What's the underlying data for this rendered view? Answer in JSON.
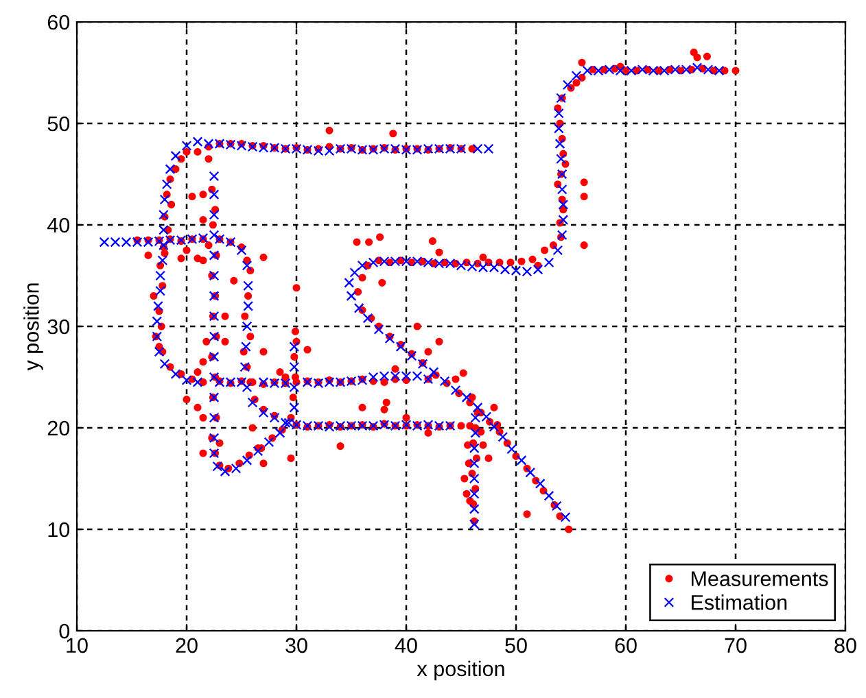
{
  "chart_data": {
    "type": "scatter",
    "xlabel": "x position",
    "ylabel": "y position",
    "xlim": [
      10,
      80
    ],
    "ylim": [
      0,
      60
    ],
    "xticks": [
      10,
      20,
      30,
      40,
      50,
      60,
      70,
      80
    ],
    "yticks": [
      0,
      10,
      20,
      30,
      40,
      50,
      60
    ],
    "grid": true,
    "legend": "bottom right",
    "series": [
      {
        "name": "Measurements",
        "color": "#ff0000",
        "marker": "circle",
        "x": [
          15.5,
          16.5,
          17.5,
          18.5,
          19.5,
          20.5,
          21.5,
          23,
          24,
          25,
          25.5,
          25.8,
          25.6,
          25.3,
          25.8,
          25.2,
          25.5,
          25.8,
          26.2,
          27,
          28,
          16.5,
          18,
          20,
          19.5,
          21.5,
          27,
          24.3,
          23.5,
          23.5,
          27,
          28.5,
          29,
          21.5,
          21,
          20,
          21,
          21.5,
          26,
          26.5,
          27,
          29.5,
          23,
          21.5,
          30,
          31,
          32,
          33,
          34,
          35,
          36,
          37,
          38,
          39,
          40,
          41,
          42,
          43,
          44,
          45,
          45.8,
          34,
          38,
          38.2,
          40,
          42,
          36,
          22.3,
          22.6,
          22.4,
          22.7,
          22.3,
          22.6,
          22.4,
          22.7,
          22.3,
          22.6,
          22.4,
          22.7,
          22.3,
          22.6,
          23,
          23.8,
          24.8,
          25.7,
          26.8,
          27.8,
          28.7,
          29.5,
          29.7,
          29.9,
          29.8,
          30,
          29.9,
          21.5,
          21,
          20.5,
          21.5,
          22,
          21.8,
          46,
          45,
          44,
          43,
          42,
          41,
          40,
          39,
          38,
          37,
          36,
          35,
          34,
          33,
          32,
          31,
          30,
          29,
          28,
          27,
          26,
          25,
          24,
          23,
          22,
          21,
          20,
          19.5,
          19,
          18.5,
          18.2,
          18.6,
          18,
          18.3,
          17.9,
          17.6,
          17.8,
          17,
          17.5,
          17.7,
          17.2,
          17.5,
          17.8,
          18.5,
          19.5,
          20.5,
          21.5,
          23,
          24,
          25,
          26,
          27,
          28,
          29,
          30,
          31,
          32,
          33,
          34,
          35,
          36,
          37,
          38,
          39,
          40,
          22,
          33,
          38.8,
          46.2,
          46.1,
          46.3,
          46,
          46.4,
          46.1,
          46.3,
          46.5,
          45.7,
          45.3,
          47.5,
          45.8,
          54.8,
          54,
          53.5,
          52.5,
          51.8,
          51,
          50,
          49.2,
          48.5,
          47.6,
          46.8,
          45.8,
          44.8,
          43.7,
          42.7,
          41.5,
          40.5,
          39.5,
          38.5,
          37.5,
          36.8,
          36,
          35.6,
          36,
          36.5,
          37.5,
          38.5,
          39.5,
          40.5,
          41.5,
          42.5,
          43.5,
          44.5,
          45.5,
          46.5,
          47.5,
          48.5,
          49.5,
          50.5,
          51.5,
          52,
          52.6,
          53.4,
          54.1,
          54,
          54.3,
          54.2,
          53.8,
          54.1,
          54.5,
          54.3,
          54.2,
          54,
          53.8,
          54.2,
          55,
          55.5,
          56,
          57,
          58,
          59,
          60,
          61,
          62,
          63,
          64,
          65,
          66,
          67,
          68,
          69,
          70,
          56,
          59.5,
          66.2,
          66.5,
          67.4,
          56.2,
          56.2,
          56.2,
          43,
          35.5,
          36.6,
          37.6,
          42.4,
          37.8,
          47,
          41,
          42,
          39,
          43,
          42,
          44.5,
          45.2,
          46,
          48,
          48.3,
          47,
          46.8,
          45.5,
          51,
          45.6,
          30,
          31
        ],
        "values": [
          38.5,
          38.5,
          38.5,
          38.6,
          38.4,
          38.6,
          38.6,
          38.6,
          38.3,
          37.8,
          36.5,
          35.5,
          33,
          31,
          29,
          27.5,
          26,
          24.5,
          22.8,
          21.8,
          21.2,
          37,
          37.2,
          37.5,
          36.7,
          36.5,
          36.8,
          34.5,
          31,
          28.5,
          27.5,
          25.5,
          25,
          26.5,
          25.5,
          22.8,
          22,
          21,
          20,
          18,
          16.5,
          17,
          18.5,
          17.5,
          20.3,
          20.1,
          20.2,
          20.3,
          20.1,
          20.2,
          20.3,
          20.1,
          20.4,
          20.2,
          20.2,
          20.3,
          20.2,
          20.1,
          20.2,
          20.2,
          20.2,
          18.2,
          21.8,
          22.5,
          21,
          19.5,
          22,
          43.5,
          41.5,
          40,
          37,
          35,
          33,
          31,
          29,
          27,
          25,
          23,
          21,
          19,
          17.5,
          16.3,
          16,
          16.5,
          17.3,
          18,
          19,
          19.8,
          21,
          23,
          25,
          27,
          28.5,
          29.5,
          40.5,
          36.7,
          42.8,
          43,
          38,
          28.5,
          47.5,
          47.5,
          47.6,
          47.5,
          47.4,
          47.5,
          47.5,
          47.4,
          47.6,
          47.5,
          47.4,
          47.6,
          47.5,
          47.7,
          47.5,
          47.4,
          47.6,
          47.5,
          47.6,
          47.8,
          47.8,
          48,
          48,
          48,
          47.7,
          47.2,
          47.2,
          46.5,
          45.5,
          44.5,
          43,
          42,
          40.8,
          39.5,
          37.8,
          36,
          34,
          33,
          31.5,
          30,
          29,
          28,
          27.5,
          26,
          25.3,
          24.8,
          24.5,
          24.6,
          24.4,
          24.6,
          24.5,
          24.3,
          24.5,
          24.4,
          24.5,
          24.6,
          24.5,
          24.7,
          24.5,
          24.6,
          24.8,
          24.6,
          24.5,
          24.8,
          24.7,
          46.5,
          49.3,
          49,
          10.8,
          12.5,
          14,
          15.5,
          17,
          18.5,
          20,
          21.5,
          16.5,
          15,
          17,
          12.8,
          10,
          11.3,
          12.4,
          13.8,
          14.8,
          16,
          17.2,
          18.5,
          19.6,
          20.6,
          21.5,
          22.5,
          23.4,
          24.4,
          25.2,
          26.4,
          27.3,
          28.2,
          29,
          30,
          30.8,
          31.6,
          33.4,
          34.8,
          36,
          36.5,
          36.3,
          36.5,
          36.3,
          36.4,
          36.2,
          36.3,
          36.2,
          36.3,
          36.2,
          36.3,
          36.3,
          36.3,
          36.4,
          36.6,
          36,
          37.5,
          38,
          38.8,
          40.2,
          41.5,
          42.5,
          44,
          45,
          46,
          47,
          48.5,
          50,
          51.5,
          52.5,
          53.5,
          54,
          54.5,
          55.3,
          55.3,
          55.4,
          55.2,
          55.2,
          55.3,
          55.2,
          55.3,
          55.2,
          55.3,
          55.4,
          55.2,
          55.2,
          55.2,
          56,
          55.6,
          57,
          56.5,
          56.6,
          44.2,
          42.8,
          38,
          37.3,
          38.3,
          38.3,
          38.8,
          38.4,
          34.3,
          36.8,
          30,
          27.5,
          25.8,
          28.5,
          24.8,
          24.8,
          25.4,
          23,
          22,
          20.3,
          18.3,
          19.6,
          13.5,
          11.5,
          18.3,
          33.8,
          27.7
        ]
      },
      {
        "name": "Estimation",
        "color": "#0000ff",
        "marker": "cross",
        "x": [
          12.5,
          13.5,
          14.5,
          15.5,
          16.5,
          17.5,
          18.5,
          19.5,
          20.5,
          21.5,
          23,
          24,
          25,
          25.5,
          25.6,
          25.6,
          25.5,
          25.4,
          25.3,
          25.5,
          26,
          27,
          28,
          29,
          30,
          31,
          32,
          33,
          34,
          35,
          36,
          37,
          38,
          39,
          40,
          41,
          42,
          43,
          44,
          22.5,
          22.5,
          22.5,
          22.5,
          22.5,
          22.5,
          22.5,
          22.5,
          22.5,
          22.5,
          22.5,
          22.5,
          22.5,
          22.5,
          22.5,
          22.8,
          23.5,
          24.5,
          25.5,
          26.5,
          27.5,
          28.5,
          29.3,
          29.8,
          29.8,
          29.8,
          29.8,
          47.5,
          46.5,
          45,
          44,
          43,
          42,
          41,
          40,
          39,
          38,
          37,
          36,
          35,
          34,
          33,
          32,
          31,
          30,
          29,
          28,
          27,
          26,
          25,
          24,
          23,
          22,
          21,
          20,
          19,
          18.5,
          18.2,
          18,
          17.9,
          17.9,
          17.9,
          17.8,
          17.6,
          17.6,
          17.4,
          17.3,
          17.3,
          17.5,
          18,
          19,
          20,
          21,
          23,
          24,
          25,
          27,
          28,
          29,
          31,
          32,
          33,
          34,
          35,
          36,
          37,
          38,
          39,
          40,
          41,
          42,
          46.2,
          46.2,
          46.2,
          46.2,
          46.2,
          46.2,
          46.3,
          46.3,
          54.5,
          53.7,
          53,
          52.2,
          51.3,
          50.5,
          49.6,
          48.8,
          48,
          47.3,
          46.5,
          45.5,
          44.5,
          43.5,
          42.5,
          41.5,
          40.5,
          39.5,
          38.5,
          37.5,
          36.5,
          35.7,
          35,
          34.8,
          35.3,
          36,
          37,
          38,
          39,
          40,
          41,
          42,
          43,
          44,
          45,
          46,
          47,
          48,
          49,
          50,
          51,
          52,
          53,
          53.8,
          54.2,
          54.3,
          54.3,
          54.2,
          54.2,
          54.1,
          54,
          53.9,
          53.9,
          54.1,
          54.7,
          55.5,
          56.5,
          57.5,
          58.5,
          59.5,
          60.5,
          61.5,
          62.5,
          63.5,
          64.5,
          65.5,
          66.5,
          67.5,
          68.5
        ],
        "values": [
          38.3,
          38.3,
          38.3,
          38.3,
          38.3,
          38.4,
          38.5,
          38.5,
          38.6,
          38.7,
          38.6,
          38.3,
          37.5,
          36,
          34,
          32,
          30,
          28,
          26,
          24,
          22.5,
          21.5,
          21,
          20.5,
          20.3,
          20.2,
          20.2,
          20.1,
          20.2,
          20.2,
          20.2,
          20.2,
          20.3,
          20.2,
          20.3,
          20.2,
          20.3,
          20.2,
          20.2,
          44.8,
          43,
          41,
          39,
          37,
          35,
          33,
          31,
          29,
          27,
          25,
          23,
          21,
          19,
          17.5,
          16.2,
          15.7,
          16,
          16.8,
          17.7,
          18.6,
          19.5,
          20.5,
          22,
          24,
          26,
          28,
          47.5,
          47.5,
          47.5,
          47.5,
          47.5,
          47.5,
          47.4,
          47.4,
          47.5,
          47.5,
          47.4,
          47.4,
          47.5,
          47.5,
          47.3,
          47.3,
          47.4,
          47.5,
          47.5,
          47.6,
          47.6,
          47.7,
          47.8,
          47.9,
          48,
          48,
          48.2,
          47.8,
          46.8,
          45.5,
          44,
          42.5,
          41,
          39.5,
          38,
          36.5,
          35,
          33.5,
          32,
          30.5,
          29,
          27.5,
          26.3,
          25.3,
          24.7,
          24.5,
          24.5,
          24.5,
          24.5,
          24.5,
          24.4,
          24.4,
          24.5,
          24.4,
          24.5,
          24.5,
          24.6,
          24.7,
          25,
          25.1,
          25.1,
          25.1,
          25.1,
          24.8,
          10.5,
          12,
          13.5,
          15,
          16.5,
          18,
          19.5,
          21,
          11.2,
          12.3,
          13.3,
          14.5,
          15.6,
          16.8,
          17.9,
          19.1,
          20.1,
          21.1,
          22,
          23,
          23.7,
          24.6,
          25.5,
          26.3,
          27.1,
          28,
          28.8,
          29.7,
          30.8,
          31.8,
          33,
          34.3,
          35.3,
          36,
          36.3,
          36.4,
          36.4,
          36.4,
          36.4,
          36.3,
          36.2,
          36.2,
          36,
          35.9,
          35.8,
          35.8,
          35.6,
          35.5,
          35.4,
          35.6,
          36.3,
          37.5,
          39,
          40.5,
          42,
          43.5,
          45,
          46.5,
          48,
          49.5,
          51,
          52.5,
          53.8,
          54.7,
          55.2,
          55.2,
          55.3,
          55.2,
          55.2,
          55.3,
          55.2,
          55.2,
          55.3,
          55.3,
          55.5,
          55.3,
          55.2
        ]
      }
    ]
  }
}
